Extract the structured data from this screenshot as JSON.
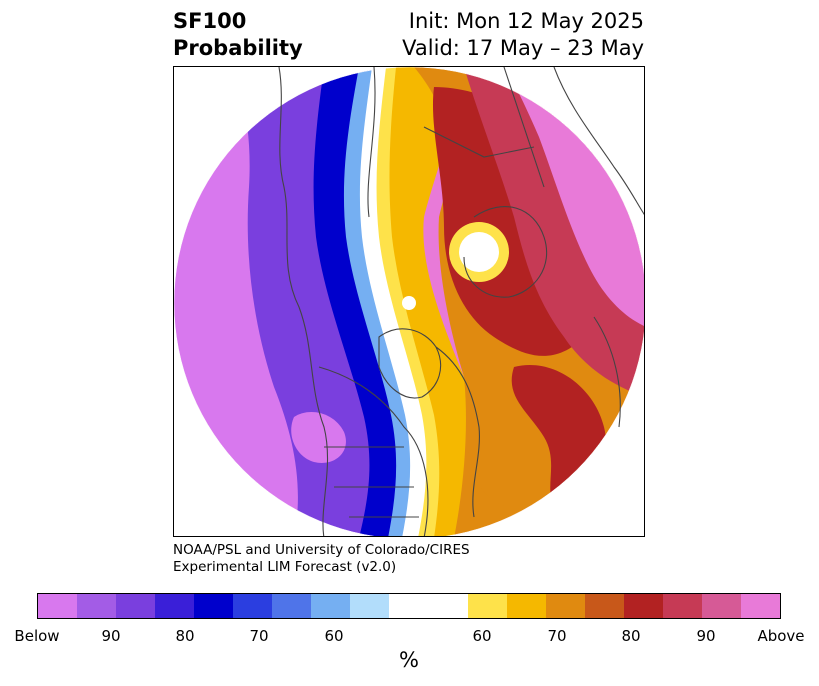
{
  "header": {
    "title_line1": "SF100",
    "title_line2": "Probability",
    "init": "Init: Mon 12 May 2025",
    "valid": "Valid: 17 May – 23 May"
  },
  "credit": {
    "line1": "NOAA/PSL and University of Colorado/CIRES",
    "line2": "Experimental LIM Forecast (v2.0)"
  },
  "colorbar": {
    "colors": [
      "#d878ee",
      "#a35ce6",
      "#7a3fde",
      "#3a1fd8",
      "#0000cc",
      "#2b3ee0",
      "#4f74e9",
      "#75aff2",
      "#b2ddfb",
      "#ffffff",
      "#ffffff",
      "#fee24a",
      "#f5b800",
      "#e08a10",
      "#c8581a",
      "#b22222",
      "#c63a55",
      "#d65a96",
      "#e87ad8"
    ],
    "labels": [
      "Below",
      "90",
      "80",
      "70",
      "60",
      "60",
      "70",
      "80",
      "90",
      "Above"
    ],
    "unit": "%"
  },
  "map": {
    "palette": {
      "coast": "#444444",
      "below_outer": "#d878ee",
      "below_mid": "#7a3fde",
      "below_core": "#0000cc",
      "above_outer": "#e87ad8",
      "above_mid": "#c63a55",
      "above_core": "#b22222",
      "warm_mid": "#e08a10",
      "warm_inner": "#f5b800",
      "warm_edge": "#fee24a"
    }
  }
}
